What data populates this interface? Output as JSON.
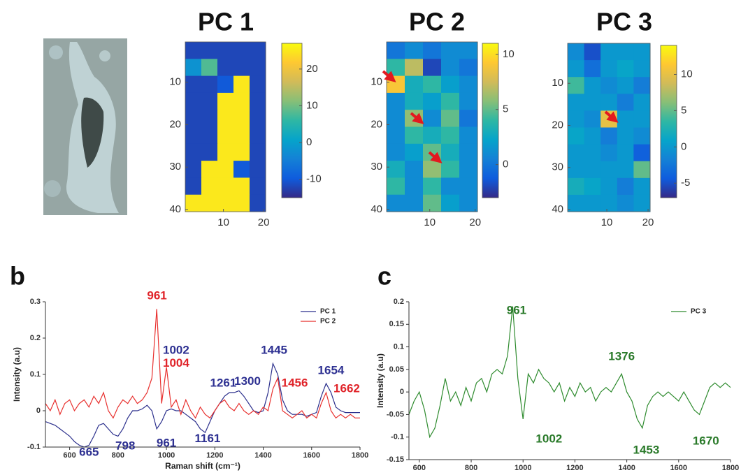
{
  "chart_data": [
    {
      "type": "heatmap",
      "title": "PC 1",
      "xlim": [
        0.5,
        20.5
      ],
      "ylim": [
        40.5,
        0.5
      ],
      "xticks": [
        10,
        20
      ],
      "yticks": [
        10,
        20,
        30,
        40
      ],
      "clim": [
        -15,
        27
      ],
      "cticks": [
        -10,
        0,
        10,
        20
      ],
      "colormap": "parula",
      "z": [
        [
          -12,
          -12,
          -12,
          -12,
          -12
        ],
        [
          -2,
          8,
          -12,
          -12,
          -12
        ],
        [
          -12,
          -12,
          -10,
          25,
          -12
        ],
        [
          -12,
          -12,
          25,
          25,
          -12
        ],
        [
          -12,
          -12,
          25,
          25,
          -12
        ],
        [
          -12,
          -12,
          25,
          25,
          -12
        ],
        [
          -12,
          -12,
          25,
          25,
          -12
        ],
        [
          -12,
          25,
          25,
          -10,
          -12
        ],
        [
          -12,
          25,
          25,
          25,
          -12
        ],
        [
          25,
          25,
          25,
          25,
          -12
        ]
      ]
    },
    {
      "type": "heatmap",
      "title": "PC 2",
      "xlim": [
        0.5,
        20.5
      ],
      "ylim": [
        40.5,
        0.5
      ],
      "xticks": [
        10,
        20
      ],
      "yticks": [
        10,
        20,
        30,
        40
      ],
      "clim": [
        -3,
        11
      ],
      "cticks": [
        0,
        5,
        10
      ],
      "colormap": "parula",
      "z": [
        [
          0,
          1,
          0,
          1,
          1
        ],
        [
          4,
          7,
          -2,
          1,
          0
        ],
        [
          9,
          3,
          4,
          2,
          1
        ],
        [
          1,
          3,
          2,
          4,
          1
        ],
        [
          1,
          6,
          1,
          5,
          0
        ],
        [
          1,
          4,
          3,
          4,
          1
        ],
        [
          1,
          2,
          5,
          3,
          1
        ],
        [
          3,
          1,
          6,
          4,
          1
        ],
        [
          4,
          1,
          4,
          1,
          1
        ],
        [
          1,
          1,
          5,
          2,
          1
        ]
      ]
    },
    {
      "type": "heatmap",
      "title": "PC 3",
      "xlim": [
        0.5,
        20.5
      ],
      "ylim": [
        40.5,
        0.5
      ],
      "xticks": [
        10,
        20
      ],
      "yticks": [
        10,
        20,
        30,
        40
      ],
      "clim": [
        -7,
        14
      ],
      "cticks": [
        -5,
        0,
        5,
        10
      ],
      "colormap": "parula",
      "z": [
        [
          -1,
          -5,
          0,
          0,
          0
        ],
        [
          0,
          -3,
          0,
          1,
          0
        ],
        [
          4,
          0,
          -1,
          0,
          -2
        ],
        [
          0,
          0,
          0,
          -2,
          0
        ],
        [
          0,
          -1,
          10,
          0,
          0
        ],
        [
          1,
          0,
          -2,
          0,
          -1
        ],
        [
          0,
          0,
          -1,
          0,
          -4
        ],
        [
          0,
          0,
          0,
          0,
          5
        ],
        [
          2,
          1,
          0,
          -2,
          0
        ],
        [
          0,
          0,
          0,
          -1,
          0
        ]
      ]
    },
    {
      "type": "line",
      "panel": "b",
      "xlabel": "Raman shift (cm⁻¹)",
      "ylabel": "Intensity (a.u)",
      "xlim": [
        500,
        1800
      ],
      "ylim": [
        -0.1,
        0.3
      ],
      "xticks": [
        600,
        800,
        1000,
        1200,
        1400,
        1600,
        1800
      ],
      "yticks": [
        -0.1,
        0,
        0.1,
        0.2,
        0.3
      ],
      "legend": "upper right",
      "x": [
        500,
        520,
        540,
        560,
        580,
        600,
        620,
        640,
        660,
        680,
        700,
        720,
        740,
        760,
        780,
        800,
        820,
        840,
        860,
        880,
        900,
        920,
        940,
        960,
        980,
        1000,
        1020,
        1040,
        1060,
        1080,
        1100,
        1120,
        1140,
        1160,
        1180,
        1200,
        1220,
        1240,
        1260,
        1280,
        1300,
        1320,
        1340,
        1360,
        1380,
        1400,
        1420,
        1440,
        1460,
        1480,
        1500,
        1520,
        1540,
        1560,
        1580,
        1600,
        1620,
        1640,
        1660,
        1680,
        1700,
        1720,
        1740,
        1760,
        1780,
        1800
      ],
      "series": [
        {
          "name": "PC 1",
          "color": "#2b2f8c",
          "values": [
            -0.03,
            -0.035,
            -0.04,
            -0.05,
            -0.06,
            -0.07,
            -0.085,
            -0.095,
            -0.1,
            -0.095,
            -0.07,
            -0.04,
            -0.035,
            -0.05,
            -0.065,
            -0.07,
            -0.05,
            -0.02,
            0,
            0,
            0.005,
            0.015,
            0,
            -0.05,
            -0.03,
            0,
            0.005,
            0,
            0,
            -0.01,
            -0.02,
            -0.03,
            -0.05,
            -0.06,
            -0.03,
            0,
            0.02,
            0.04,
            0.05,
            0.05,
            0.055,
            0.04,
            0.02,
            0,
            -0.005,
            0,
            0.05,
            0.13,
            0.1,
            0.03,
            0,
            -0.01,
            -0.01,
            -0.01,
            -0.015,
            -0.01,
            -0.005,
            0.04,
            0.075,
            0.05,
            0.01,
            0,
            -0.005,
            -0.005,
            -0.005,
            -0.005
          ]
        },
        {
          "name": "PC 2",
          "color": "#e8302e",
          "values": [
            0.02,
            0,
            0.03,
            -0.01,
            0.02,
            0.03,
            0,
            0.02,
            0.03,
            0.01,
            0.04,
            0.02,
            0.05,
            0,
            -0.02,
            0.01,
            0.03,
            0.02,
            0.04,
            0.02,
            0.03,
            0.05,
            0.09,
            0.28,
            0.02,
            0.12,
            0.01,
            0.03,
            -0.01,
            0.03,
            0,
            -0.02,
            0.01,
            -0.01,
            -0.02,
            0,
            0.02,
            0.03,
            0.01,
            0,
            0.02,
            0,
            -0.01,
            0,
            -0.01,
            0.01,
            0,
            0.06,
            0.09,
            0,
            -0.01,
            -0.02,
            -0.01,
            0,
            -0.02,
            -0.01,
            -0.02,
            0.02,
            0.05,
            0,
            -0.02,
            -0.01,
            -0.02,
            -0.01,
            -0.02,
            -0.02
          ]
        }
      ],
      "annotations": [
        {
          "label": "961",
          "x": 961,
          "y": 0.315,
          "color": "#e0242a"
        },
        {
          "label": "1002",
          "x": 1040,
          "y": 0.165,
          "color": "#2e3192"
        },
        {
          "label": "1004",
          "x": 1040,
          "y": 0.13,
          "color": "#e0242a"
        },
        {
          "label": "1261",
          "x": 1235,
          "y": 0.075,
          "color": "#2e3192"
        },
        {
          "label": "1300",
          "x": 1335,
          "y": 0.08,
          "color": "#2e3192"
        },
        {
          "label": "1445",
          "x": 1445,
          "y": 0.165,
          "color": "#2e3192"
        },
        {
          "label": "1456",
          "x": 1530,
          "y": 0.075,
          "color": "#e0242a"
        },
        {
          "label": "1654",
          "x": 1680,
          "y": 0.11,
          "color": "#2e3192"
        },
        {
          "label": "1662",
          "x": 1745,
          "y": 0.06,
          "color": "#e0242a"
        },
        {
          "label": "665",
          "x": 680,
          "y": -0.115,
          "color": "#2e3192"
        },
        {
          "label": "798",
          "x": 830,
          "y": -0.098,
          "color": "#2e3192"
        },
        {
          "label": "961",
          "x": 1000,
          "y": -0.09,
          "color": "#2e3192"
        },
        {
          "label": "1161",
          "x": 1170,
          "y": -0.078,
          "color": "#2e3192"
        }
      ]
    },
    {
      "type": "line",
      "panel": "c",
      "ylabel": "Intensity (a.u)",
      "xlim": [
        560,
        1800
      ],
      "ylim": [
        -0.15,
        0.2
      ],
      "xticks": [
        600,
        800,
        1000,
        1200,
        1400,
        1600,
        1800
      ],
      "yticks": [
        -0.15,
        -0.1,
        -0.05,
        0,
        0.05,
        0.1,
        0.15,
        0.2
      ],
      "legend": "upper right",
      "x": [
        560,
        580,
        600,
        620,
        640,
        660,
        680,
        700,
        720,
        740,
        760,
        780,
        800,
        820,
        840,
        860,
        880,
        900,
        920,
        940,
        960,
        980,
        1000,
        1020,
        1040,
        1060,
        1080,
        1100,
        1120,
        1140,
        1160,
        1180,
        1200,
        1220,
        1240,
        1260,
        1280,
        1300,
        1320,
        1340,
        1360,
        1380,
        1400,
        1420,
        1440,
        1460,
        1480,
        1500,
        1520,
        1540,
        1560,
        1580,
        1600,
        1620,
        1640,
        1660,
        1680,
        1700,
        1720,
        1740,
        1760,
        1780,
        1800
      ],
      "series": [
        {
          "name": "PC 3",
          "color": "#2e8b2e",
          "values": [
            -0.05,
            -0.02,
            0,
            -0.04,
            -0.1,
            -0.08,
            -0.03,
            0.03,
            -0.02,
            0,
            -0.03,
            0.01,
            -0.02,
            0.02,
            0.03,
            0,
            0.04,
            0.05,
            0.04,
            0.08,
            0.19,
            0.03,
            -0.06,
            0.04,
            0.02,
            0.05,
            0.03,
            0.02,
            0,
            0.02,
            -0.02,
            0.01,
            -0.01,
            0.02,
            0,
            0.01,
            -0.02,
            0,
            0.01,
            0,
            0.02,
            0.04,
            0,
            -0.02,
            -0.06,
            -0.08,
            -0.03,
            -0.01,
            0,
            -0.01,
            0,
            -0.01,
            -0.02,
            0,
            -0.02,
            -0.04,
            -0.05,
            -0.02,
            0.01,
            0.02,
            0.01,
            0.02,
            0.01
          ]
        }
      ],
      "annotations": [
        {
          "label": "961",
          "x": 975,
          "y": 0.18,
          "color": "#2a7a2a"
        },
        {
          "label": "1376",
          "x": 1380,
          "y": 0.078,
          "color": "#2a7a2a"
        },
        {
          "label": "1002",
          "x": 1100,
          "y": -0.105,
          "color": "#2a7a2a"
        },
        {
          "label": "1453",
          "x": 1475,
          "y": -0.13,
          "color": "#2a7a2a"
        },
        {
          "label": "1670",
          "x": 1705,
          "y": -0.11,
          "color": "#2a7a2a"
        }
      ]
    }
  ]
}
